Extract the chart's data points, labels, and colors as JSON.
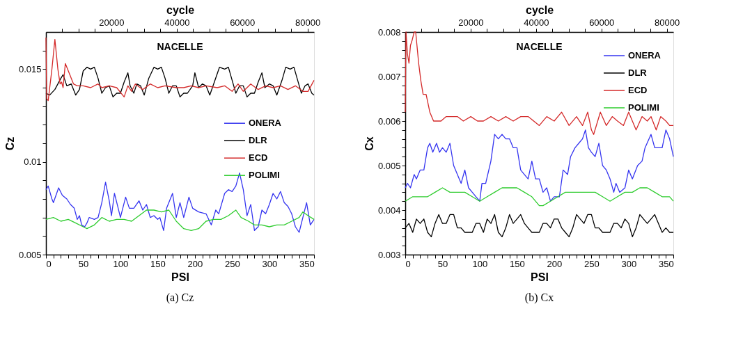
{
  "chart_data": [
    {
      "type": "line",
      "title": "(a) Cz",
      "xlabel": "PSI",
      "ylabel": "Cz",
      "x2label": "cycle",
      "annotations": [
        "NACELLE"
      ],
      "legend": "right",
      "xlim": [
        0,
        360
      ],
      "ylim": [
        0.005,
        0.017
      ],
      "x2lim": [
        0,
        82000
      ],
      "xticks": [
        0,
        {
          "value": 10,
          "label": null
        },
        {
          "value": 20,
          "label": null
        },
        {
          "value": 30,
          "label": null
        },
        {
          "value": 40,
          "label": null
        },
        50,
        {
          "value": 60,
          "label": null
        },
        {
          "value": 70,
          "label": null
        },
        {
          "value": 80,
          "label": null
        },
        {
          "value": 90,
          "label": null
        },
        100,
        {
          "value": 110,
          "label": null
        },
        {
          "value": 120,
          "label": null
        },
        {
          "value": 130,
          "label": null
        },
        {
          "value": 140,
          "label": null
        },
        150,
        {
          "value": 160,
          "label": null
        },
        {
          "value": 170,
          "label": null
        },
        {
          "value": 180,
          "label": null
        },
        {
          "value": 190,
          "label": null
        },
        200,
        {
          "value": 210,
          "label": null
        },
        {
          "value": 220,
          "label": null
        },
        {
          "value": 230,
          "label": null
        },
        {
          "value": 240,
          "label": null
        },
        250,
        {
          "value": 260,
          "label": null
        },
        {
          "value": 270,
          "label": null
        },
        {
          "value": 280,
          "label": null
        },
        {
          "value": 290,
          "label": null
        },
        300,
        {
          "value": 310,
          "label": null
        },
        {
          "value": 320,
          "label": null
        },
        {
          "value": 330,
          "label": null
        },
        {
          "value": 340,
          "label": null
        },
        350,
        {
          "value": 360,
          "label": null
        }
      ],
      "yticks": [
        0.005,
        {
          "value": 0.006,
          "label": null
        },
        {
          "value": 0.007,
          "label": null
        },
        {
          "value": 0.008,
          "label": null
        },
        {
          "value": 0.009,
          "label": null
        },
        0.01,
        {
          "value": 0.011,
          "label": null
        },
        {
          "value": 0.012,
          "label": null
        },
        {
          "value": 0.013,
          "label": null
        },
        {
          "value": 0.014,
          "label": null
        },
        0.015,
        {
          "value": 0.016,
          "label": null
        }
      ],
      "x2ticks": [
        {
          "value": 5000,
          "label": null
        },
        {
          "value": 10000,
          "label": null
        },
        {
          "value": 15000,
          "label": null
        },
        20000,
        {
          "value": 25000,
          "label": null
        },
        {
          "value": 30000,
          "label": null
        },
        {
          "value": 35000,
          "label": null
        },
        40000,
        {
          "value": 45000,
          "label": null
        },
        {
          "value": 50000,
          "label": null
        },
        {
          "value": 55000,
          "label": null
        },
        60000,
        {
          "value": 65000,
          "label": null
        },
        {
          "value": 70000,
          "label": null
        },
        {
          "value": 75000,
          "label": null
        },
        80000
      ],
      "series": [
        {
          "name": "ONERA",
          "color": "#3535f0",
          "x": [
            0,
            3,
            8,
            10,
            17,
            22,
            28,
            33,
            38,
            42,
            45,
            48,
            52,
            55,
            58,
            65,
            70,
            75,
            80,
            85,
            88,
            92,
            97,
            100,
            107,
            112,
            118,
            125,
            130,
            135,
            140,
            145,
            150,
            153,
            158,
            162,
            170,
            175,
            180,
            185,
            192,
            197,
            205,
            215,
            222,
            228,
            232,
            240,
            245,
            250,
            255,
            260,
            265,
            270,
            275,
            280,
            285,
            290,
            295,
            300,
            305,
            310,
            315,
            320,
            325,
            330,
            335,
            340,
            345,
            350,
            355,
            360
          ],
          "values": [
            0.0085,
            0.0087,
            0.008,
            0.0078,
            0.0086,
            0.0082,
            0.008,
            0.0077,
            0.0075,
            0.0069,
            0.0071,
            0.0066,
            0.0065,
            0.0067,
            0.007,
            0.0069,
            0.007,
            0.0078,
            0.0089,
            0.0079,
            0.0071,
            0.0083,
            0.0075,
            0.007,
            0.0081,
            0.0075,
            0.0075,
            0.0079,
            0.0074,
            0.0077,
            0.007,
            0.0071,
            0.0069,
            0.007,
            0.0063,
            0.0075,
            0.0083,
            0.007,
            0.0078,
            0.007,
            0.0081,
            0.0075,
            0.0073,
            0.0072,
            0.0066,
            0.0074,
            0.0072,
            0.0083,
            0.0085,
            0.0084,
            0.0087,
            0.0094,
            0.0085,
            0.0071,
            0.0077,
            0.0063,
            0.0065,
            0.0074,
            0.0072,
            0.0077,
            0.0083,
            0.008,
            0.0084,
            0.0078,
            0.0076,
            0.0072,
            0.0065,
            0.0062,
            0.007,
            0.0078,
            0.0066,
            0.0069
          ]
        },
        {
          "name": "DLR",
          "color": "#000000",
          "x": [
            0,
            5,
            12,
            20,
            23,
            28,
            34,
            40,
            45,
            50,
            55,
            60,
            65,
            70,
            75,
            80,
            85,
            90,
            95,
            100,
            105,
            110,
            113,
            118,
            122,
            127,
            132,
            138,
            145,
            150,
            155,
            160,
            165,
            170,
            175,
            180,
            185,
            190,
            197,
            200,
            205,
            210,
            215,
            220,
            227,
            233,
            240,
            245,
            250,
            255,
            260,
            265,
            270,
            275,
            280,
            285,
            290,
            294,
            300,
            305,
            310,
            317,
            322,
            328,
            333,
            338,
            343,
            348,
            352,
            357,
            360
          ],
          "values": [
            0.0137,
            0.0136,
            0.0139,
            0.0145,
            0.0147,
            0.0141,
            0.0142,
            0.0136,
            0.0139,
            0.0149,
            0.0151,
            0.015,
            0.0151,
            0.0145,
            0.0137,
            0.014,
            0.0141,
            0.0135,
            0.0137,
            0.0137,
            0.0143,
            0.0148,
            0.0141,
            0.0137,
            0.0142,
            0.0141,
            0.0136,
            0.0145,
            0.0151,
            0.015,
            0.0151,
            0.0145,
            0.0137,
            0.0141,
            0.0141,
            0.0135,
            0.0137,
            0.0137,
            0.0141,
            0.0148,
            0.014,
            0.0142,
            0.0141,
            0.0136,
            0.0144,
            0.0151,
            0.015,
            0.0151,
            0.0144,
            0.0137,
            0.0141,
            0.0141,
            0.0135,
            0.0137,
            0.0137,
            0.0143,
            0.0148,
            0.014,
            0.0142,
            0.0141,
            0.0136,
            0.0144,
            0.0151,
            0.015,
            0.0151,
            0.0144,
            0.0137,
            0.0141,
            0.0142,
            0.0137,
            0.0136
          ]
        },
        {
          "name": "ECD",
          "color": "#d42a2a",
          "x": [
            0,
            1,
            3,
            8,
            12,
            16,
            19,
            21,
            23,
            26,
            29,
            32,
            37,
            42,
            50,
            60,
            70,
            75,
            85,
            95,
            105,
            110,
            115,
            120,
            130,
            140,
            150,
            160,
            175,
            185,
            195,
            205,
            215,
            230,
            240,
            250,
            258,
            265,
            275,
            285,
            295,
            305,
            315,
            325,
            335,
            345,
            352,
            360
          ],
          "values": [
            0.0167,
            0.0134,
            0.0133,
            0.015,
            0.0166,
            0.015,
            0.0142,
            0.0143,
            0.014,
            0.0153,
            0.015,
            0.0147,
            0.0142,
            0.0141,
            0.0141,
            0.014,
            0.0142,
            0.014,
            0.0141,
            0.014,
            0.0135,
            0.0141,
            0.0138,
            0.0142,
            0.0139,
            0.0142,
            0.014,
            0.0141,
            0.014,
            0.014,
            0.0141,
            0.014,
            0.0141,
            0.014,
            0.0141,
            0.0138,
            0.0142,
            0.0138,
            0.0142,
            0.0139,
            0.0141,
            0.014,
            0.0141,
            0.0139,
            0.0141,
            0.0138,
            0.0138,
            0.0144
          ]
        },
        {
          "name": "POLIMI",
          "color": "#2ecc2e",
          "x": [
            0,
            10,
            20,
            30,
            40,
            50,
            55,
            65,
            75,
            85,
            95,
            105,
            115,
            125,
            135,
            145,
            155,
            165,
            175,
            185,
            195,
            205,
            215,
            225,
            235,
            245,
            255,
            262,
            272,
            280,
            290,
            300,
            310,
            320,
            330,
            340,
            345,
            352,
            360
          ],
          "values": [
            0.0069,
            0.007,
            0.0068,
            0.0069,
            0.0067,
            0.0065,
            0.0064,
            0.0066,
            0.007,
            0.0068,
            0.0069,
            0.0069,
            0.0068,
            0.0071,
            0.0074,
            0.0074,
            0.0073,
            0.0074,
            0.0068,
            0.0064,
            0.0063,
            0.0064,
            0.0068,
            0.0069,
            0.0069,
            0.0071,
            0.0074,
            0.007,
            0.0068,
            0.0066,
            0.0066,
            0.0065,
            0.0066,
            0.0066,
            0.0068,
            0.007,
            0.0073,
            0.0071,
            0.0069
          ]
        }
      ]
    },
    {
      "type": "line",
      "title": "(b) Cx",
      "xlabel": "PSI",
      "ylabel": "Cx",
      "x2label": "cycle",
      "annotations": [
        "NACELLE"
      ],
      "legend": "top right",
      "xlim": [
        0,
        360
      ],
      "ylim": [
        0.003,
        0.008
      ],
      "x2lim": [
        0,
        82000
      ],
      "xticks": [
        0,
        {
          "value": 10,
          "label": null
        },
        {
          "value": 20,
          "label": null
        },
        {
          "value": 30,
          "label": null
        },
        {
          "value": 40,
          "label": null
        },
        50,
        {
          "value": 60,
          "label": null
        },
        {
          "value": 70,
          "label": null
        },
        {
          "value": 80,
          "label": null
        },
        {
          "value": 90,
          "label": null
        },
        100,
        {
          "value": 110,
          "label": null
        },
        {
          "value": 120,
          "label": null
        },
        {
          "value": 130,
          "label": null
        },
        {
          "value": 140,
          "label": null
        },
        150,
        {
          "value": 160,
          "label": null
        },
        {
          "value": 170,
          "label": null
        },
        {
          "value": 180,
          "label": null
        },
        {
          "value": 190,
          "label": null
        },
        200,
        {
          "value": 210,
          "label": null
        },
        {
          "value": 220,
          "label": null
        },
        {
          "value": 230,
          "label": null
        },
        {
          "value": 240,
          "label": null
        },
        250,
        {
          "value": 260,
          "label": null
        },
        {
          "value": 270,
          "label": null
        },
        {
          "value": 280,
          "label": null
        },
        {
          "value": 290,
          "label": null
        },
        300,
        {
          "value": 310,
          "label": null
        },
        {
          "value": 320,
          "label": null
        },
        {
          "value": 330,
          "label": null
        },
        {
          "value": 340,
          "label": null
        },
        350,
        {
          "value": 360,
          "label": null
        }
      ],
      "yticks": [
        0.003,
        {
          "value": 0.0032,
          "label": null
        },
        {
          "value": 0.0034,
          "label": null
        },
        {
          "value": 0.0036,
          "label": null
        },
        {
          "value": 0.0038,
          "label": null
        },
        0.004,
        {
          "value": 0.0042,
          "label": null
        },
        {
          "value": 0.0044,
          "label": null
        },
        {
          "value": 0.0046,
          "label": null
        },
        {
          "value": 0.0048,
          "label": null
        },
        0.005,
        {
          "value": 0.0052,
          "label": null
        },
        {
          "value": 0.0054,
          "label": null
        },
        {
          "value": 0.0056,
          "label": null
        },
        {
          "value": 0.0058,
          "label": null
        },
        0.006,
        {
          "value": 0.0062,
          "label": null
        },
        {
          "value": 0.0064,
          "label": null
        },
        {
          "value": 0.0066,
          "label": null
        },
        {
          "value": 0.0068,
          "label": null
        },
        0.007,
        {
          "value": 0.0072,
          "label": null
        },
        {
          "value": 0.0074,
          "label": null
        },
        {
          "value": 0.0076,
          "label": null
        },
        {
          "value": 0.0078,
          "label": null
        },
        0.008
      ],
      "x2ticks": [
        {
          "value": 5000,
          "label": null
        },
        {
          "value": 10000,
          "label": null
        },
        {
          "value": 15000,
          "label": null
        },
        20000,
        {
          "value": 25000,
          "label": null
        },
        {
          "value": 30000,
          "label": null
        },
        {
          "value": 35000,
          "label": null
        },
        40000,
        {
          "value": 45000,
          "label": null
        },
        {
          "value": 50000,
          "label": null
        },
        {
          "value": 55000,
          "label": null
        },
        60000,
        {
          "value": 65000,
          "label": null
        },
        {
          "value": 70000,
          "label": null
        },
        {
          "value": 75000,
          "label": null
        },
        80000
      ],
      "series": [
        {
          "name": "ONERA",
          "color": "#3535f0",
          "x": [
            0,
            3,
            7,
            12,
            15,
            20,
            25,
            30,
            33,
            37,
            42,
            46,
            50,
            55,
            60,
            65,
            70,
            75,
            80,
            85,
            90,
            95,
            100,
            103,
            108,
            115,
            120,
            125,
            130,
            135,
            140,
            145,
            150,
            155,
            160,
            165,
            170,
            175,
            180,
            185,
            190,
            195,
            200,
            207,
            212,
            218,
            222,
            228,
            233,
            238,
            242,
            246,
            250,
            255,
            260,
            265,
            270,
            275,
            280,
            283,
            288,
            295,
            300,
            305,
            312,
            318,
            322,
            330,
            335,
            340,
            345,
            350,
            355,
            360
          ],
          "values": [
            0.0045,
            0.0046,
            0.0045,
            0.0048,
            0.0047,
            0.0049,
            0.0049,
            0.0054,
            0.0055,
            0.0053,
            0.0055,
            0.0053,
            0.0054,
            0.0053,
            0.0055,
            0.005,
            0.0048,
            0.0046,
            0.0049,
            0.0045,
            0.0044,
            0.0043,
            0.0042,
            0.0046,
            0.0046,
            0.0051,
            0.0057,
            0.0056,
            0.0057,
            0.0056,
            0.0056,
            0.0054,
            0.0054,
            0.0049,
            0.0048,
            0.0047,
            0.0051,
            0.0047,
            0.0047,
            0.0044,
            0.0045,
            0.0042,
            0.0043,
            0.0043,
            0.0049,
            0.0048,
            0.0052,
            0.0054,
            0.0055,
            0.0056,
            0.0058,
            0.0054,
            0.0053,
            0.0052,
            0.0055,
            0.005,
            0.0049,
            0.0047,
            0.0044,
            0.0046,
            0.0044,
            0.0045,
            0.0049,
            0.0047,
            0.005,
            0.0051,
            0.0054,
            0.0057,
            0.0054,
            0.0054,
            0.0054,
            0.0058,
            0.0056,
            0.0052
          ]
        },
        {
          "name": "DLR",
          "color": "#000000",
          "x": [
            0,
            5,
            10,
            15,
            20,
            25,
            30,
            35,
            40,
            45,
            50,
            55,
            60,
            65,
            70,
            75,
            80,
            90,
            95,
            100,
            105,
            110,
            115,
            120,
            125,
            130,
            135,
            140,
            145,
            150,
            155,
            160,
            165,
            170,
            180,
            185,
            190,
            195,
            200,
            205,
            210,
            215,
            220,
            225,
            230,
            235,
            240,
            245,
            250,
            255,
            260,
            265,
            275,
            280,
            285,
            290,
            295,
            300,
            305,
            310,
            315,
            320,
            325,
            330,
            335,
            340,
            345,
            350,
            355,
            360
          ],
          "values": [
            0.0036,
            0.0037,
            0.0035,
            0.0038,
            0.0037,
            0.0038,
            0.0035,
            0.0034,
            0.0037,
            0.0039,
            0.0037,
            0.0037,
            0.0039,
            0.0039,
            0.0036,
            0.0036,
            0.0035,
            0.0035,
            0.0037,
            0.0037,
            0.0035,
            0.0038,
            0.0037,
            0.0039,
            0.0035,
            0.0034,
            0.0036,
            0.0039,
            0.0037,
            0.0038,
            0.0039,
            0.0037,
            0.0036,
            0.0035,
            0.0035,
            0.0037,
            0.0037,
            0.0036,
            0.0038,
            0.0038,
            0.0036,
            0.0035,
            0.0034,
            0.0036,
            0.0039,
            0.0038,
            0.0037,
            0.0039,
            0.0039,
            0.0036,
            0.0036,
            0.0035,
            0.0035,
            0.0037,
            0.0037,
            0.0036,
            0.0038,
            0.0037,
            0.0034,
            0.0036,
            0.0039,
            0.0038,
            0.0037,
            0.0038,
            0.0039,
            0.0037,
            0.0035,
            0.0036,
            0.0035,
            0.0035
          ]
        },
        {
          "name": "ECD",
          "color": "#d42a2a",
          "x": [
            0,
            1,
            3,
            5,
            7,
            9,
            12,
            14,
            18,
            21,
            24,
            28,
            33,
            38,
            43,
            48,
            55,
            62,
            70,
            78,
            88,
            97,
            105,
            115,
            125,
            135,
            145,
            155,
            165,
            180,
            190,
            200,
            210,
            220,
            230,
            238,
            245,
            250,
            253,
            262,
            270,
            278,
            285,
            293,
            300,
            310,
            318,
            325,
            330,
            337,
            343,
            350,
            355,
            360
          ],
          "values": [
            0.0062,
            0.008,
            0.0075,
            0.0073,
            0.0077,
            0.0078,
            0.008,
            0.008,
            0.0073,
            0.0069,
            0.0066,
            0.0066,
            0.0062,
            0.006,
            0.006,
            0.006,
            0.0061,
            0.0061,
            0.0061,
            0.006,
            0.0061,
            0.006,
            0.006,
            0.0061,
            0.006,
            0.0061,
            0.006,
            0.0061,
            0.0061,
            0.0059,
            0.0061,
            0.006,
            0.0062,
            0.0059,
            0.0061,
            0.0059,
            0.0062,
            0.0058,
            0.0057,
            0.0062,
            0.0059,
            0.0061,
            0.006,
            0.0059,
            0.0062,
            0.0058,
            0.0061,
            0.006,
            0.0061,
            0.0058,
            0.0061,
            0.006,
            0.0059,
            0.0059
          ]
        },
        {
          "name": "POLIMI",
          "color": "#2ecc2e",
          "x": [
            0,
            10,
            20,
            30,
            40,
            50,
            60,
            70,
            80,
            90,
            100,
            110,
            120,
            130,
            140,
            150,
            160,
            170,
            180,
            185,
            195,
            205,
            215,
            225,
            240,
            255,
            265,
            275,
            285,
            295,
            305,
            315,
            325,
            335,
            345,
            355,
            360
          ],
          "values": [
            0.0042,
            0.0043,
            0.0043,
            0.0043,
            0.0044,
            0.0045,
            0.0044,
            0.0044,
            0.0044,
            0.0043,
            0.0042,
            0.0043,
            0.0044,
            0.0045,
            0.0045,
            0.0045,
            0.0044,
            0.0043,
            0.0041,
            0.0041,
            0.0042,
            0.0043,
            0.0044,
            0.0044,
            0.0044,
            0.0044,
            0.0043,
            0.0042,
            0.0043,
            0.0044,
            0.0044,
            0.0045,
            0.0045,
            0.0044,
            0.0043,
            0.0043,
            0.0042
          ]
        }
      ]
    }
  ]
}
